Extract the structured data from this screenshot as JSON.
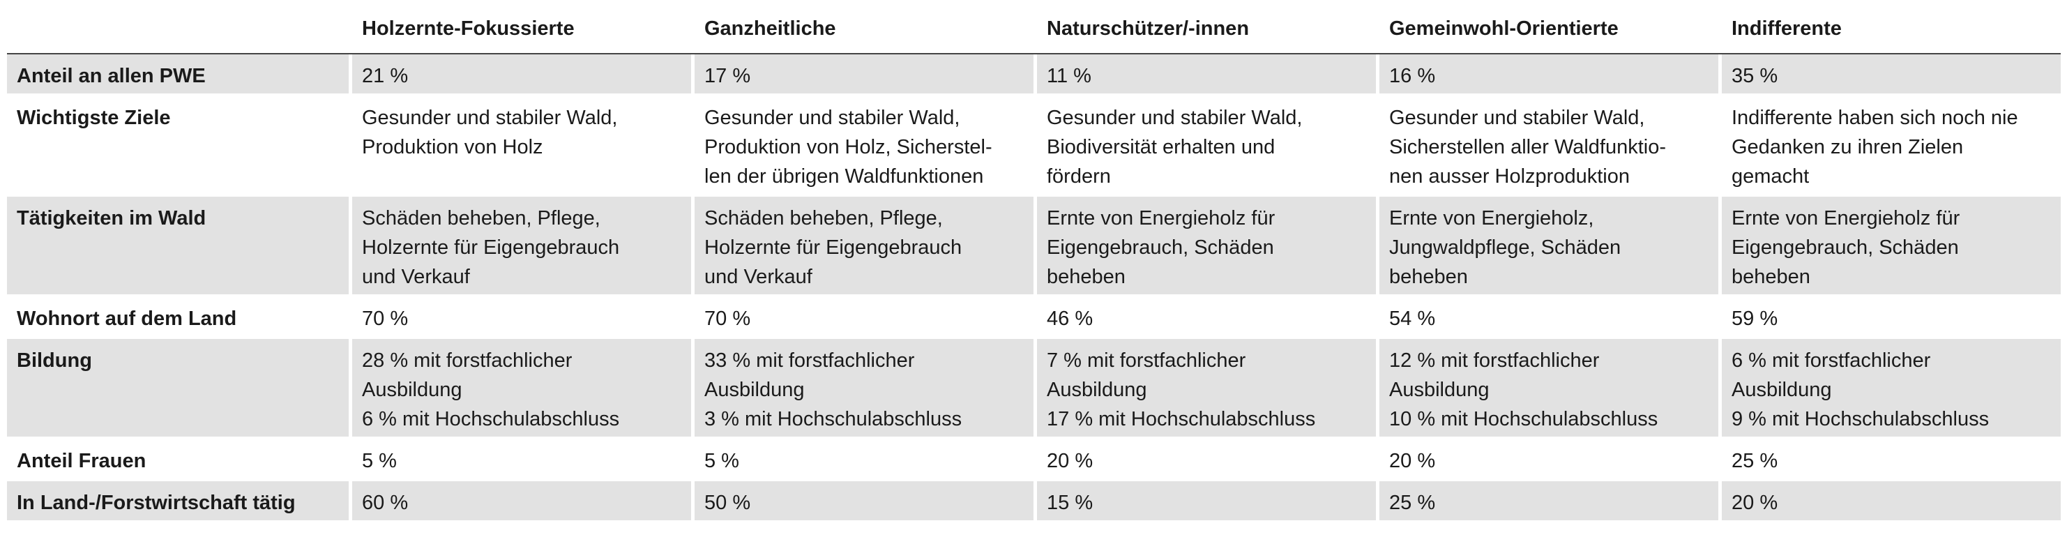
{
  "columns": [
    "",
    "Holzernte-Fokussierte",
    "Ganzheitliche",
    "Naturschützer/-innen",
    "Gemeinwohl-Orientierte",
    "Indifferente"
  ],
  "rows": [
    {
      "label": "Anteil an allen PWE",
      "cells": [
        [
          "21 %"
        ],
        [
          "17 %"
        ],
        [
          "11 %"
        ],
        [
          "16 %"
        ],
        [
          "35 %"
        ]
      ]
    },
    {
      "label": "Wichtigste Ziele",
      "cells": [
        [
          "Gesunder und stabiler Wald,",
          "Produktion von Holz"
        ],
        [
          "Gesunder und stabiler Wald,",
          "Produktion von Holz, Sicherstel-",
          "len der übrigen Waldfunktionen"
        ],
        [
          "Gesunder und stabiler Wald,",
          "Biodiversität erhalten und",
          "fördern"
        ],
        [
          "Gesunder und stabiler Wald,",
          "Sicherstellen aller Waldfunktio-",
          "nen ausser Holzproduktion"
        ],
        [
          "Indifferente haben sich noch nie",
          "Gedanken zu ihren Zielen",
          "gemacht"
        ]
      ]
    },
    {
      "label": "Tätigkeiten im Wald",
      "cells": [
        [
          "Schäden beheben, Pflege,",
          "Holzernte für Eigengebrauch",
          "und Verkauf"
        ],
        [
          "Schäden beheben, Pflege,",
          "Holzernte für Eigengebrauch",
          "und Verkauf"
        ],
        [
          "Ernte von Energieholz für",
          "Eigengebrauch, Schäden",
          "beheben"
        ],
        [
          "Ernte von Energieholz,",
          "Jungwaldpflege, Schäden",
          "beheben"
        ],
        [
          "Ernte von Energieholz für",
          "Eigengebrauch, Schäden",
          "beheben"
        ]
      ]
    },
    {
      "label": "Wohnort auf dem Land",
      "cells": [
        [
          "70 %"
        ],
        [
          "70 %"
        ],
        [
          "46 %"
        ],
        [
          "54 %"
        ],
        [
          "59 %"
        ]
      ]
    },
    {
      "label": "Bildung",
      "cells": [
        [
          "28 % mit forstfachlicher",
          "Ausbildung",
          "6 % mit Hochschulabschluss"
        ],
        [
          "33 % mit forstfachlicher",
          "Ausbildung",
          "3 % mit Hochschulabschluss"
        ],
        [
          "7 % mit forstfachlicher",
          "Ausbildung",
          "17 % mit Hochschulabschluss"
        ],
        [
          "12 % mit forstfachlicher",
          "Ausbildung",
          "10 % mit Hochschulabschluss"
        ],
        [
          "6 % mit forstfachlicher",
          "Ausbildung",
          "9 % mit Hochschulabschluss"
        ]
      ]
    },
    {
      "label": "Anteil Frauen",
      "cells": [
        [
          "5 %"
        ],
        [
          "5 %"
        ],
        [
          "20 %"
        ],
        [
          "20 %"
        ],
        [
          "25 %"
        ]
      ]
    },
    {
      "label": "In Land-/Forstwirtschaft tätig",
      "cells": [
        [
          "60 %"
        ],
        [
          "50 %"
        ],
        [
          "15 %"
        ],
        [
          "25 %"
        ],
        [
          "20 %"
        ]
      ]
    }
  ],
  "shaded_rows": [
    0,
    2,
    4,
    6
  ],
  "colors": {
    "shade": "#e2e2e2",
    "rule": "#444444",
    "text": "#1a1a1a"
  }
}
